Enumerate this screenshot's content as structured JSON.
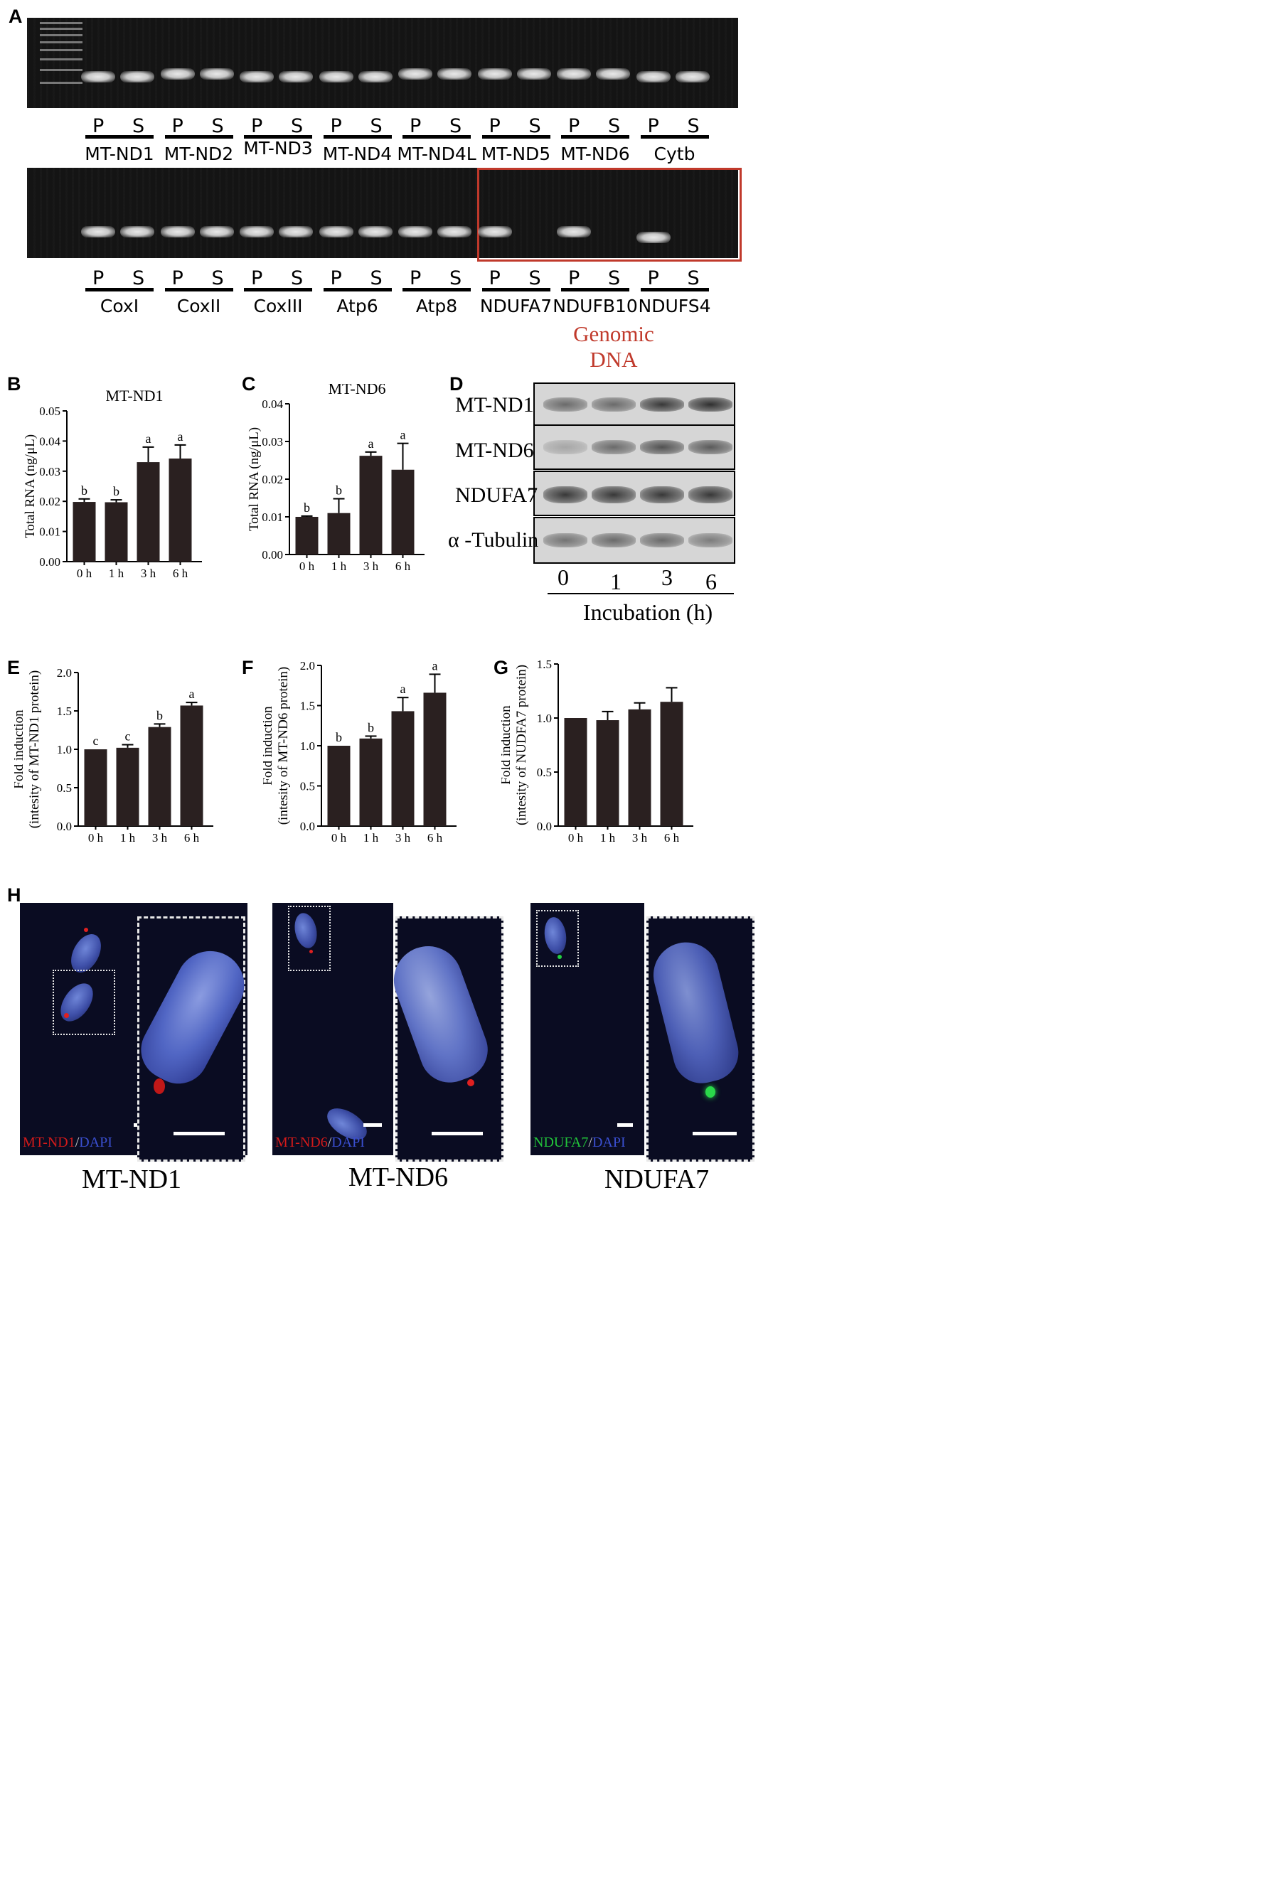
{
  "panel_labels": {
    "A": "A",
    "B": "B",
    "C": "C",
    "D": "D",
    "E": "E",
    "F": "F",
    "G": "G",
    "H": "H"
  },
  "gel": {
    "lane_P": "P",
    "lane_S": "S",
    "row1_genes": [
      "MT-ND1",
      "MT-ND2",
      "MT-ND3",
      "MT-ND4",
      "MT-ND4L",
      "MT-ND5",
      "MT-ND6",
      "Cytb"
    ],
    "row2_genes": [
      "CoxI",
      "CoxII",
      "CoxIII",
      "Atp6",
      "Atp8",
      "NDUFA7",
      "NDUFB10",
      "NDUFS4"
    ],
    "genomic_label": "Genomic DNA",
    "highlight_color": "#c0392b"
  },
  "blot": {
    "rows": [
      "MT-ND1",
      "MT-ND6",
      "NDUFA7",
      "α -Tubulin"
    ],
    "times": [
      "0",
      "1",
      "3",
      "6"
    ],
    "xlabel": "Incubation (h)",
    "row_band_intensity": [
      [
        0.55,
        0.55,
        0.85,
        0.9
      ],
      [
        0.2,
        0.55,
        0.7,
        0.65
      ],
      [
        0.85,
        0.85,
        0.85,
        0.85
      ],
      [
        0.5,
        0.55,
        0.55,
        0.45
      ]
    ]
  },
  "chart_data": [
    {
      "id": "B",
      "type": "bar",
      "title": "MT-ND1",
      "categories": [
        "0 h",
        "1 h",
        "3 h",
        "6 h"
      ],
      "values": [
        0.0198,
        0.0197,
        0.033,
        0.0342
      ],
      "errors": [
        0.001,
        0.0008,
        0.005,
        0.0045
      ],
      "letters": [
        "b",
        "b",
        "a",
        "a"
      ],
      "ylabel": "Total RNA (ng/μL)",
      "ylim": [
        0,
        0.05
      ],
      "yticks": [
        "0.00",
        "0.01",
        "0.02",
        "0.03",
        "0.04",
        "0.05"
      ]
    },
    {
      "id": "C",
      "type": "bar",
      "title": "MT-ND6",
      "categories": [
        "0 h",
        "1 h",
        "3 h",
        "6 h"
      ],
      "values": [
        0.01,
        0.011,
        0.0262,
        0.0225
      ],
      "errors": [
        0.0002,
        0.0038,
        0.001,
        0.007
      ],
      "letters": [
        "b",
        "b",
        "a",
        "a"
      ],
      "ylabel": "Total RNA (ng/μL)",
      "ylim": [
        0,
        0.04
      ],
      "yticks": [
        "0.00",
        "0.01",
        "0.02",
        "0.03",
        "0.04"
      ]
    },
    {
      "id": "E",
      "type": "bar",
      "title": "",
      "categories": [
        "0 h",
        "1 h",
        "3 h",
        "6 h"
      ],
      "values": [
        1.0,
        1.02,
        1.29,
        1.57
      ],
      "errors": [
        0.0,
        0.04,
        0.04,
        0.04
      ],
      "letters": [
        "c",
        "c",
        "b",
        "a"
      ],
      "ylabel": "Fold induction|(intesity of MT-ND1 protein)",
      "ylim": [
        0,
        2.0
      ],
      "yticks": [
        "0.0",
        "0.5",
        "1.0",
        "1.5",
        "2.0"
      ]
    },
    {
      "id": "F",
      "type": "bar",
      "title": "",
      "categories": [
        "0 h",
        "1 h",
        "3 h",
        "6 h"
      ],
      "values": [
        1.0,
        1.09,
        1.43,
        1.66
      ],
      "errors": [
        0.0,
        0.03,
        0.17,
        0.23
      ],
      "letters": [
        "b",
        "b",
        "a",
        "a"
      ],
      "ylabel": "Fold induction|(intesity of MT-ND6 protein)",
      "ylim": [
        0,
        2.0
      ],
      "yticks": [
        "0.0",
        "0.5",
        "1.0",
        "1.5",
        "2.0"
      ]
    },
    {
      "id": "G",
      "type": "bar",
      "title": "",
      "categories": [
        "0 h",
        "1 h",
        "3 h",
        "6 h"
      ],
      "values": [
        1.0,
        0.98,
        1.08,
        1.15
      ],
      "errors": [
        0.0,
        0.08,
        0.06,
        0.13
      ],
      "letters": [
        "",
        "",
        "",
        ""
      ],
      "ylabel": "Fold induction|(intesity of NUDFA7 protein)",
      "ylim": [
        0,
        1.5
      ],
      "yticks": [
        "0.0",
        "0.5",
        "1.0",
        "1.5"
      ]
    }
  ],
  "micro": {
    "panels": [
      {
        "caption": "MT-ND1",
        "stain_a": "MT-ND1",
        "stain_b": "DAPI",
        "stain_a_color": "#d21a1a",
        "stain_b_color": "#3a4fd0"
      },
      {
        "caption": "MT-ND6",
        "stain_a": "MT-ND6",
        "stain_b": "DAPI",
        "stain_a_color": "#d21a1a",
        "stain_b_color": "#3a4fd0"
      },
      {
        "caption": "NDUFA7",
        "stain_a": "NDUFA7",
        "stain_b": "DAPI",
        "stain_a_color": "#22c43a",
        "stain_b_color": "#3a4fd0"
      }
    ],
    "separator": "/"
  }
}
